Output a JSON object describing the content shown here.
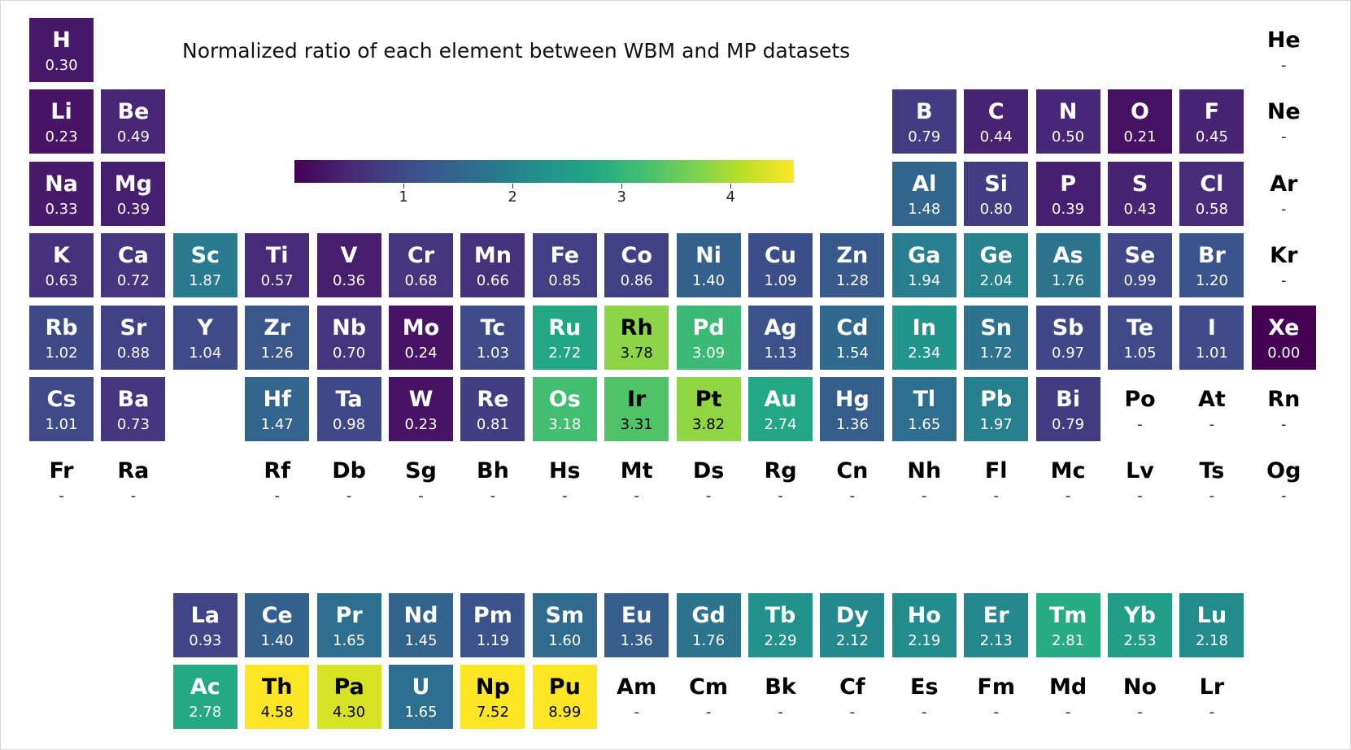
{
  "chart_data": {
    "type": "heatmap",
    "title": "Normalized ratio of each element between WBM and MP datasets",
    "colormap": "viridis",
    "colorbar": {
      "range": [
        0.0,
        4.58
      ],
      "ticks": [
        1,
        2,
        3,
        4
      ]
    },
    "missing_label": "-",
    "elements": [
      {
        "symbol": "H",
        "value": 0.3,
        "row": 1,
        "col": 1
      },
      {
        "symbol": "He",
        "value": null,
        "row": 1,
        "col": 18
      },
      {
        "symbol": "Li",
        "value": 0.23,
        "row": 2,
        "col": 1
      },
      {
        "symbol": "Be",
        "value": 0.49,
        "row": 2,
        "col": 2
      },
      {
        "symbol": "B",
        "value": 0.79,
        "row": 2,
        "col": 13
      },
      {
        "symbol": "C",
        "value": 0.44,
        "row": 2,
        "col": 14
      },
      {
        "symbol": "N",
        "value": 0.5,
        "row": 2,
        "col": 15
      },
      {
        "symbol": "O",
        "value": 0.21,
        "row": 2,
        "col": 16
      },
      {
        "symbol": "F",
        "value": 0.45,
        "row": 2,
        "col": 17
      },
      {
        "symbol": "Ne",
        "value": null,
        "row": 2,
        "col": 18
      },
      {
        "symbol": "Na",
        "value": 0.33,
        "row": 3,
        "col": 1
      },
      {
        "symbol": "Mg",
        "value": 0.39,
        "row": 3,
        "col": 2
      },
      {
        "symbol": "Al",
        "value": 1.48,
        "row": 3,
        "col": 13
      },
      {
        "symbol": "Si",
        "value": 0.8,
        "row": 3,
        "col": 14
      },
      {
        "symbol": "P",
        "value": 0.39,
        "row": 3,
        "col": 15
      },
      {
        "symbol": "S",
        "value": 0.43,
        "row": 3,
        "col": 16
      },
      {
        "symbol": "Cl",
        "value": 0.58,
        "row": 3,
        "col": 17
      },
      {
        "symbol": "Ar",
        "value": null,
        "row": 3,
        "col": 18
      },
      {
        "symbol": "K",
        "value": 0.63,
        "row": 4,
        "col": 1
      },
      {
        "symbol": "Ca",
        "value": 0.72,
        "row": 4,
        "col": 2
      },
      {
        "symbol": "Sc",
        "value": 1.87,
        "row": 4,
        "col": 3
      },
      {
        "symbol": "Ti",
        "value": 0.57,
        "row": 4,
        "col": 4
      },
      {
        "symbol": "V",
        "value": 0.36,
        "row": 4,
        "col": 5
      },
      {
        "symbol": "Cr",
        "value": 0.68,
        "row": 4,
        "col": 6
      },
      {
        "symbol": "Mn",
        "value": 0.66,
        "row": 4,
        "col": 7
      },
      {
        "symbol": "Fe",
        "value": 0.85,
        "row": 4,
        "col": 8
      },
      {
        "symbol": "Co",
        "value": 0.86,
        "row": 4,
        "col": 9
      },
      {
        "symbol": "Ni",
        "value": 1.4,
        "row": 4,
        "col": 10
      },
      {
        "symbol": "Cu",
        "value": 1.09,
        "row": 4,
        "col": 11
      },
      {
        "symbol": "Zn",
        "value": 1.28,
        "row": 4,
        "col": 12
      },
      {
        "symbol": "Ga",
        "value": 1.94,
        "row": 4,
        "col": 13
      },
      {
        "symbol": "Ge",
        "value": 2.04,
        "row": 4,
        "col": 14
      },
      {
        "symbol": "As",
        "value": 1.76,
        "row": 4,
        "col": 15
      },
      {
        "symbol": "Se",
        "value": 0.99,
        "row": 4,
        "col": 16
      },
      {
        "symbol": "Br",
        "value": 1.2,
        "row": 4,
        "col": 17
      },
      {
        "symbol": "Kr",
        "value": null,
        "row": 4,
        "col": 18
      },
      {
        "symbol": "Rb",
        "value": 1.02,
        "row": 5,
        "col": 1
      },
      {
        "symbol": "Sr",
        "value": 0.88,
        "row": 5,
        "col": 2
      },
      {
        "symbol": "Y",
        "value": 1.04,
        "row": 5,
        "col": 3
      },
      {
        "symbol": "Zr",
        "value": 1.26,
        "row": 5,
        "col": 4
      },
      {
        "symbol": "Nb",
        "value": 0.7,
        "row": 5,
        "col": 5
      },
      {
        "symbol": "Mo",
        "value": 0.24,
        "row": 5,
        "col": 6
      },
      {
        "symbol": "Tc",
        "value": 1.03,
        "row": 5,
        "col": 7
      },
      {
        "symbol": "Ru",
        "value": 2.72,
        "row": 5,
        "col": 8
      },
      {
        "symbol": "Rh",
        "value": 3.78,
        "row": 5,
        "col": 9
      },
      {
        "symbol": "Pd",
        "value": 3.09,
        "row": 5,
        "col": 10
      },
      {
        "symbol": "Ag",
        "value": 1.13,
        "row": 5,
        "col": 11
      },
      {
        "symbol": "Cd",
        "value": 1.54,
        "row": 5,
        "col": 12
      },
      {
        "symbol": "In",
        "value": 2.34,
        "row": 5,
        "col": 13
      },
      {
        "symbol": "Sn",
        "value": 1.72,
        "row": 5,
        "col": 14
      },
      {
        "symbol": "Sb",
        "value": 0.97,
        "row": 5,
        "col": 15
      },
      {
        "symbol": "Te",
        "value": 1.05,
        "row": 5,
        "col": 16
      },
      {
        "symbol": "I",
        "value": 1.01,
        "row": 5,
        "col": 17
      },
      {
        "symbol": "Xe",
        "value": 0.0,
        "row": 5,
        "col": 18
      },
      {
        "symbol": "Cs",
        "value": 1.01,
        "row": 6,
        "col": 1
      },
      {
        "symbol": "Ba",
        "value": 0.73,
        "row": 6,
        "col": 2
      },
      {
        "symbol": "Hf",
        "value": 1.47,
        "row": 6,
        "col": 4
      },
      {
        "symbol": "Ta",
        "value": 0.98,
        "row": 6,
        "col": 5
      },
      {
        "symbol": "W",
        "value": 0.23,
        "row": 6,
        "col": 6
      },
      {
        "symbol": "Re",
        "value": 0.81,
        "row": 6,
        "col": 7
      },
      {
        "symbol": "Os",
        "value": 3.18,
        "row": 6,
        "col": 8
      },
      {
        "symbol": "Ir",
        "value": 3.31,
        "row": 6,
        "col": 9
      },
      {
        "symbol": "Pt",
        "value": 3.82,
        "row": 6,
        "col": 10
      },
      {
        "symbol": "Au",
        "value": 2.74,
        "row": 6,
        "col": 11
      },
      {
        "symbol": "Hg",
        "value": 1.36,
        "row": 6,
        "col": 12
      },
      {
        "symbol": "Tl",
        "value": 1.65,
        "row": 6,
        "col": 13
      },
      {
        "symbol": "Pb",
        "value": 1.97,
        "row": 6,
        "col": 14
      },
      {
        "symbol": "Bi",
        "value": 0.79,
        "row": 6,
        "col": 15
      },
      {
        "symbol": "Po",
        "value": null,
        "row": 6,
        "col": 16
      },
      {
        "symbol": "At",
        "value": null,
        "row": 6,
        "col": 17
      },
      {
        "symbol": "Rn",
        "value": null,
        "row": 6,
        "col": 18
      },
      {
        "symbol": "Fr",
        "value": null,
        "row": 7,
        "col": 1
      },
      {
        "symbol": "Ra",
        "value": null,
        "row": 7,
        "col": 2
      },
      {
        "symbol": "Rf",
        "value": null,
        "row": 7,
        "col": 4
      },
      {
        "symbol": "Db",
        "value": null,
        "row": 7,
        "col": 5
      },
      {
        "symbol": "Sg",
        "value": null,
        "row": 7,
        "col": 6
      },
      {
        "symbol": "Bh",
        "value": null,
        "row": 7,
        "col": 7
      },
      {
        "symbol": "Hs",
        "value": null,
        "row": 7,
        "col": 8
      },
      {
        "symbol": "Mt",
        "value": null,
        "row": 7,
        "col": 9
      },
      {
        "symbol": "Ds",
        "value": null,
        "row": 7,
        "col": 10
      },
      {
        "symbol": "Rg",
        "value": null,
        "row": 7,
        "col": 11
      },
      {
        "symbol": "Cn",
        "value": null,
        "row": 7,
        "col": 12
      },
      {
        "symbol": "Nh",
        "value": null,
        "row": 7,
        "col": 13
      },
      {
        "symbol": "Fl",
        "value": null,
        "row": 7,
        "col": 14
      },
      {
        "symbol": "Mc",
        "value": null,
        "row": 7,
        "col": 15
      },
      {
        "symbol": "Lv",
        "value": null,
        "row": 7,
        "col": 16
      },
      {
        "symbol": "Ts",
        "value": null,
        "row": 7,
        "col": 17
      },
      {
        "symbol": "Og",
        "value": null,
        "row": 7,
        "col": 18
      },
      {
        "symbol": "La",
        "value": 0.93,
        "row": 9,
        "col": 3
      },
      {
        "symbol": "Ce",
        "value": 1.4,
        "row": 9,
        "col": 4
      },
      {
        "symbol": "Pr",
        "value": 1.65,
        "row": 9,
        "col": 5
      },
      {
        "symbol": "Nd",
        "value": 1.45,
        "row": 9,
        "col": 6
      },
      {
        "symbol": "Pm",
        "value": 1.19,
        "row": 9,
        "col": 7
      },
      {
        "symbol": "Sm",
        "value": 1.6,
        "row": 9,
        "col": 8
      },
      {
        "symbol": "Eu",
        "value": 1.36,
        "row": 9,
        "col": 9
      },
      {
        "symbol": "Gd",
        "value": 1.76,
        "row": 9,
        "col": 10
      },
      {
        "symbol": "Tb",
        "value": 2.29,
        "row": 9,
        "col": 11
      },
      {
        "symbol": "Dy",
        "value": 2.12,
        "row": 9,
        "col": 12
      },
      {
        "symbol": "Ho",
        "value": 2.19,
        "row": 9,
        "col": 13
      },
      {
        "symbol": "Er",
        "value": 2.13,
        "row": 9,
        "col": 14
      },
      {
        "symbol": "Tm",
        "value": 2.81,
        "row": 9,
        "col": 15
      },
      {
        "symbol": "Yb",
        "value": 2.53,
        "row": 9,
        "col": 16
      },
      {
        "symbol": "Lu",
        "value": 2.18,
        "row": 9,
        "col": 17
      },
      {
        "symbol": "Ac",
        "value": 2.78,
        "row": 10,
        "col": 3
      },
      {
        "symbol": "Th",
        "value": 4.58,
        "row": 10,
        "col": 4
      },
      {
        "symbol": "Pa",
        "value": 4.3,
        "row": 10,
        "col": 5
      },
      {
        "symbol": "U",
        "value": 1.65,
        "row": 10,
        "col": 6
      },
      {
        "symbol": "Np",
        "value": 7.52,
        "row": 10,
        "col": 7
      },
      {
        "symbol": "Pu",
        "value": 8.99,
        "row": 10,
        "col": 8
      },
      {
        "symbol": "Am",
        "value": null,
        "row": 10,
        "col": 9
      },
      {
        "symbol": "Cm",
        "value": null,
        "row": 10,
        "col": 10
      },
      {
        "symbol": "Bk",
        "value": null,
        "row": 10,
        "col": 11
      },
      {
        "symbol": "Cf",
        "value": null,
        "row": 10,
        "col": 12
      },
      {
        "symbol": "Es",
        "value": null,
        "row": 10,
        "col": 13
      },
      {
        "symbol": "Fm",
        "value": null,
        "row": 10,
        "col": 14
      },
      {
        "symbol": "Md",
        "value": null,
        "row": 10,
        "col": 15
      },
      {
        "symbol": "No",
        "value": null,
        "row": 10,
        "col": 16
      },
      {
        "symbol": "Lr",
        "value": null,
        "row": 10,
        "col": 17
      }
    ]
  }
}
